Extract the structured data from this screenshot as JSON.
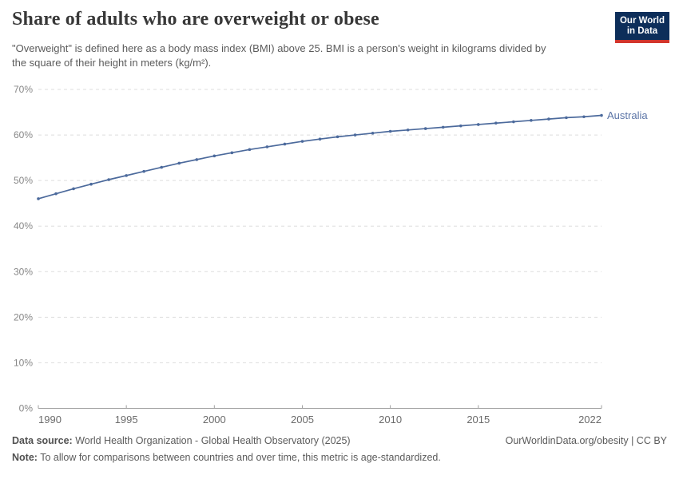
{
  "header": {
    "title": "Share of adults who are overweight or obese",
    "subtitle": "\"Overweight\" is defined here as a body mass index (BMI) above 25. BMI is a person's weight in kilograms divided by the square of their height in meters (kg/m²).",
    "logo": {
      "line1": "Our World",
      "line2": "in Data"
    }
  },
  "chart_data": {
    "type": "line",
    "title": "Share of adults who are overweight or obese",
    "xlabel": "",
    "ylabel": "",
    "xlim": [
      1990,
      2022
    ],
    "ylim": [
      0,
      70
    ],
    "yticks": [
      0,
      10,
      20,
      30,
      40,
      50,
      60,
      70
    ],
    "ytick_suffix": "%",
    "xticks": [
      1990,
      1995,
      2000,
      2005,
      2010,
      2015,
      2022
    ],
    "grid": "horizontal-dashed",
    "legend_position": "end-of-line-label",
    "x": [
      1990,
      1991,
      1992,
      1993,
      1994,
      1995,
      1996,
      1997,
      1998,
      1999,
      2000,
      2001,
      2002,
      2003,
      2004,
      2005,
      2006,
      2007,
      2008,
      2009,
      2010,
      2011,
      2012,
      2013,
      2014,
      2015,
      2016,
      2017,
      2018,
      2019,
      2020,
      2021,
      2022
    ],
    "series": [
      {
        "name": "Australia",
        "color": "#4c6a9c",
        "values": [
          46.0,
          47.1,
          48.2,
          49.2,
          50.2,
          51.1,
          52.0,
          52.9,
          53.8,
          54.6,
          55.4,
          56.1,
          56.8,
          57.4,
          58.0,
          58.6,
          59.1,
          59.6,
          60.0,
          60.4,
          60.8,
          61.1,
          61.4,
          61.7,
          62.0,
          62.3,
          62.6,
          62.9,
          63.2,
          63.5,
          63.8,
          64.0,
          64.3
        ]
      }
    ]
  },
  "colors": {
    "line": "#4c6a9c",
    "series_label": "#5b74a6",
    "gridline": "#dddddd",
    "axis": "#a0a0a0",
    "y_tick_label": "#878787",
    "x_tick_label": "#6b6b6b",
    "logo_bg": "#0d2e5a",
    "logo_bar": "#d2352c"
  },
  "footer": {
    "datasource_label": "Data source:",
    "datasource_text": "World Health Organization - Global Health Observatory (2025)",
    "citation": "OurWorldinData.org/obesity | CC BY",
    "note_label": "Note:",
    "note_text": "To allow for comparisons between countries and over time, this metric is age-standardized."
  }
}
